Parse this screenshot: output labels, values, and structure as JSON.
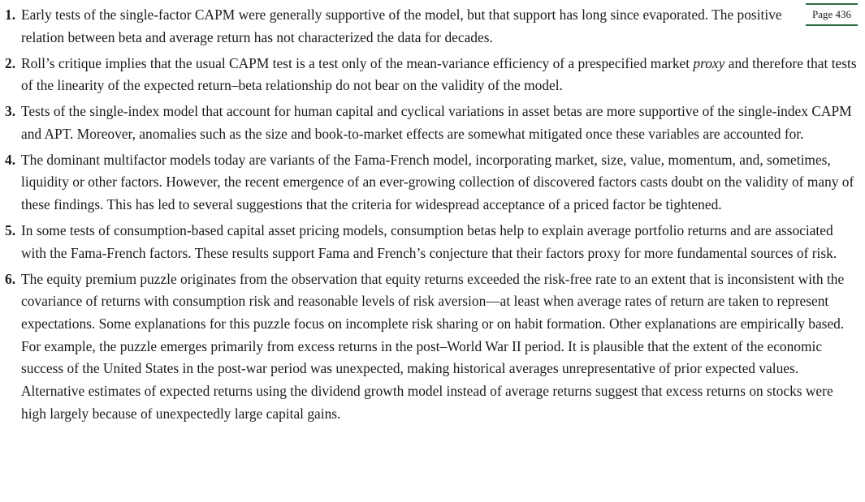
{
  "page_label": "Page 436",
  "items": [
    {
      "number": "1.",
      "text": "Early tests of the single-factor CAPM were generally supportive of the model, but that support has long since evaporated. The positive relation between beta and average return has not characterized the data for decades."
    },
    {
      "number": "2.",
      "text_before": "Roll’s critique implies that the usual CAPM test is a test only of the mean-variance efficiency of a prespecified market ",
      "text_em": "proxy",
      "text_after": " and therefore that tests of the linearity of the expected return–beta relationship do not bear on the validity of the model."
    },
    {
      "number": "3.",
      "text": "Tests of the single-index model that account for human capital and cyclical variations in asset betas are more supportive of the single-index CAPM and APT. Moreover, anomalies such as the size and book-to-market effects are somewhat mitigated once these variables are accounted for."
    },
    {
      "number": "4.",
      "text": "The dominant multifactor models today are variants of the Fama-French model, incorporating market, size, value, momentum, and, sometimes, liquidity or other factors. However, the recent emergence of an ever-growing collection of discovered factors casts doubt on the validity of many of these findings. This has led to several suggestions that the criteria for widespread acceptance of a priced factor be tightened."
    },
    {
      "number": "5.",
      "text": "In some tests of consumption-based capital asset pricing models, consumption betas help to explain average portfolio returns and are associated with the Fama-French factors. These results support Fama and French’s conjecture that their factors proxy for more fundamental sources of risk."
    },
    {
      "number": "6.",
      "text": "The equity premium puzzle originates from the observation that equity returns exceeded the risk-free rate to an extent that is inconsistent with the covariance of returns with consumption risk and reasonable levels of risk aversion—at least when average rates of return are taken to represent expectations. Some explanations for this puzzle focus on incomplete risk sharing or on habit formation. Other explanations are empirically based. For example, the puzzle emerges primarily from excess returns in the post–World War II period. It is plausible that the extent of the economic success of the United States in the post-war period was unexpected, making historical averages unrepresentative of prior expected values. Alternative estimates of expected returns using the dividend growth model instead of average returns suggest that excess returns on stocks were high largely because of unexpectedly large capital gains."
    }
  ]
}
